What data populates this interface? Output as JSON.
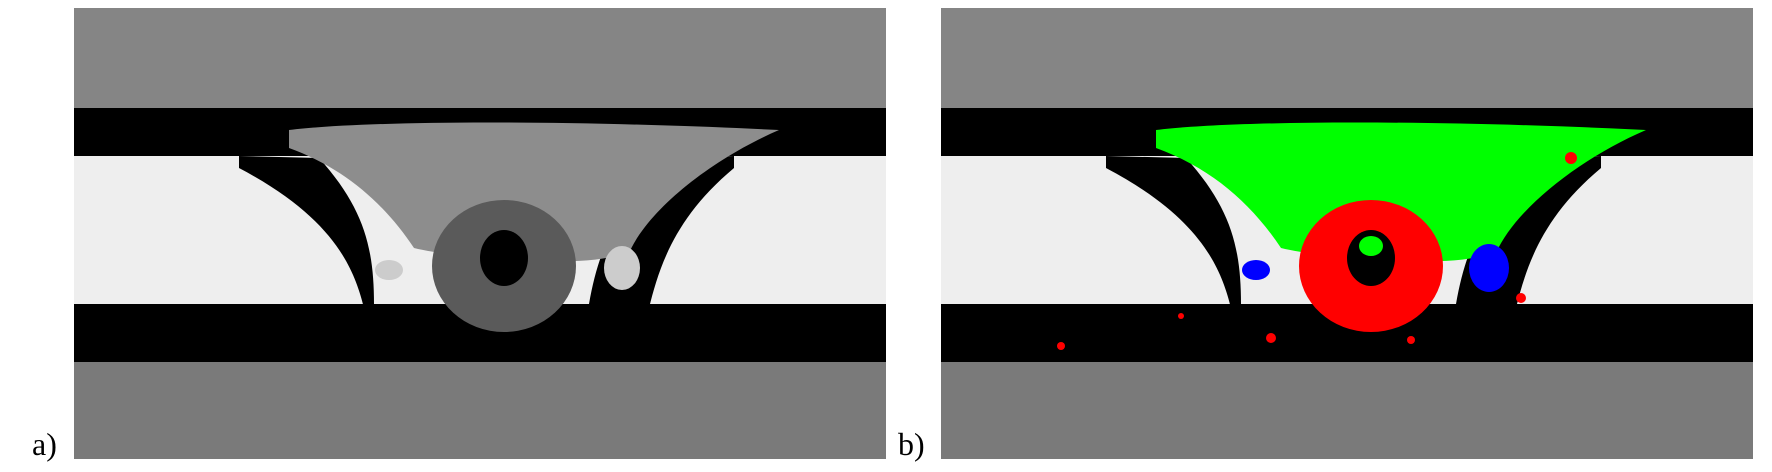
{
  "figure": {
    "panels": [
      {
        "label": "a)",
        "kind": "grayscale-segmentation"
      },
      {
        "label": "b)",
        "kind": "color-classified-segmentation"
      }
    ],
    "colors": {
      "background": "#ffffff",
      "band_gray": "#8a8a8a",
      "band_dark_gray": "#777777",
      "black_layer": "#000000",
      "light_region": "#eeeeee",
      "weld_gray": "#8d8d8d",
      "core_gray": "#5a5a5a",
      "class_green": "#00ff00",
      "class_red": "#ff0000",
      "class_blue": "#0000ff"
    }
  }
}
